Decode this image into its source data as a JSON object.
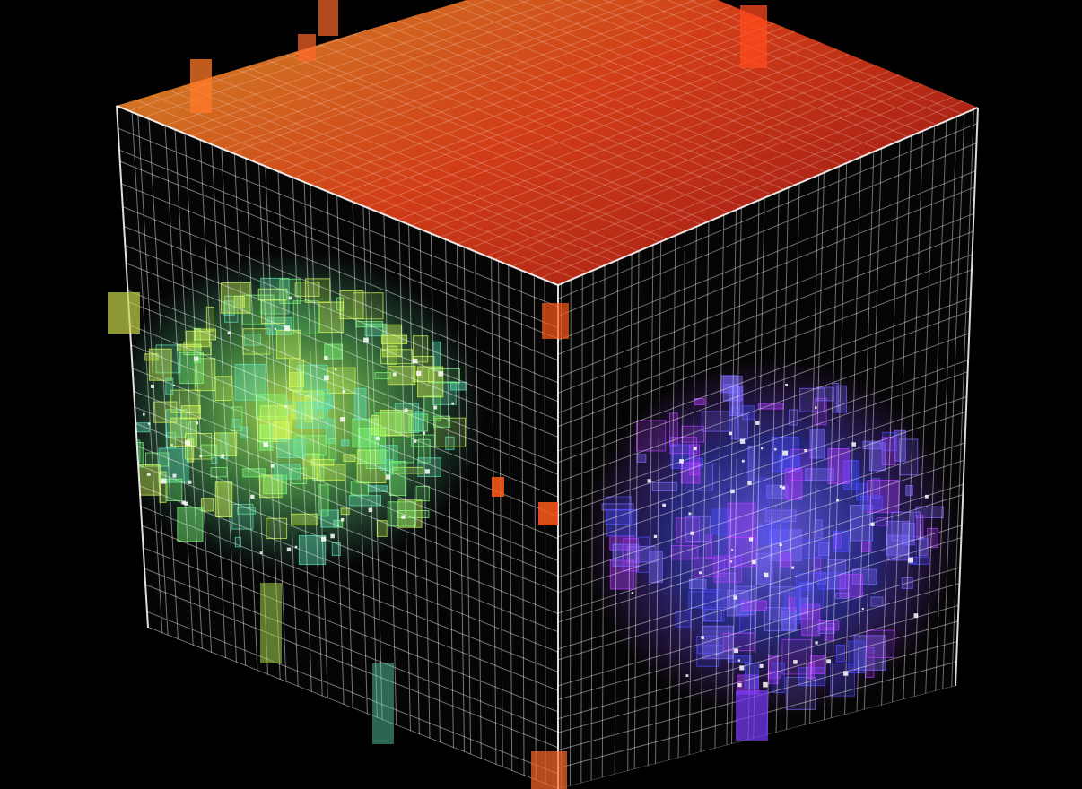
{
  "scene": {
    "subject": "wireframe-data-cube",
    "palette": {
      "background": "#000000",
      "top_face_hot": "#ff4a1c",
      "top_face_warm": "#ff8a2a",
      "top_corner_yellow": "#ffd23a",
      "grid_line": "#ffffff",
      "cluster_green": "#7dff7a",
      "cluster_cyan": "#5fe3b8",
      "cluster_yellow": "#d8ff5a",
      "cluster_blue": "#4a4dff",
      "cluster_violet": "#b23cff",
      "accent_orange": "#ff5a1a"
    }
  }
}
